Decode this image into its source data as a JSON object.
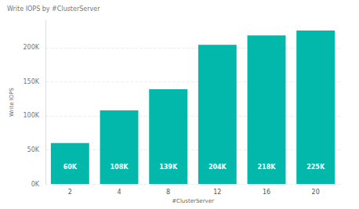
{
  "chart_data": {
    "type": "bar",
    "title": "Write IOPS by #ClusterServer",
    "x_label": "#ClusterServer",
    "y_label": "Write IOPS",
    "categories": [
      "2",
      "4",
      "8",
      "12",
      "16",
      "20"
    ],
    "values": [
      60000,
      108000,
      139000,
      204000,
      218000,
      225000
    ],
    "value_labels": [
      "60K",
      "108K",
      "139K",
      "204K",
      "218K",
      "225K"
    ],
    "color": "#01B8AA",
    "ylim": [
      0,
      240000
    ],
    "yticks": [
      {
        "value": 0,
        "label": "0K"
      },
      {
        "value": 50000,
        "label": "50K"
      },
      {
        "value": 100000,
        "label": "100K"
      },
      {
        "value": 150000,
        "label": "150K"
      },
      {
        "value": 200000,
        "label": "200K"
      }
    ],
    "grid": true,
    "data_labels": true
  }
}
